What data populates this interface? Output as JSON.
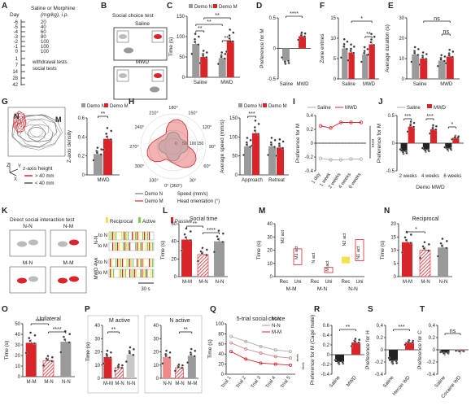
{
  "panel_letters": [
    "A",
    "B",
    "C",
    "D",
    "E",
    "F",
    "G",
    "H",
    "I",
    "J",
    "K",
    "L",
    "M",
    "N",
    "O",
    "P",
    "Q",
    "R",
    "S",
    "T"
  ],
  "colors": {
    "red": "#d9252a",
    "grey": "#9a9a9a",
    "dark": "#222222",
    "pink": "#f08a8a",
    "lightgrey": "#c8c8c8",
    "purple": "#4a3ad6",
    "yellow": "#f5e24a",
    "green": "#7ccf5a"
  },
  "panelA": {
    "col_day": "Day",
    "col_dose": "Saline or Morphine",
    "col_unit": "(mg/kg), i.p.",
    "days": [
      "-6",
      "-5",
      "-4",
      "-3",
      "-2",
      "-1",
      "0",
      "1",
      "7",
      "14",
      "28",
      "42"
    ],
    "doses": [
      "20",
      "40",
      "60",
      "80",
      "100",
      "100",
      "100"
    ],
    "note1": "withdrawal tests",
    "note2": "social tests"
  },
  "panelB": {
    "title": "Social choice test",
    "label_top": "Saline",
    "label_bottom": "MWD"
  },
  "legend_demo": {
    "n": "Demo N",
    "m": "Demo M"
  },
  "legend_treat": {
    "saline": "Saline",
    "mwd": "MWD"
  },
  "chart_data": [
    {
      "panel": "C",
      "type": "bar",
      "ylabel": "Time (s)",
      "ylim": [
        0,
        150
      ],
      "yticks": [
        "0",
        "50",
        "100",
        "150"
      ],
      "categories": [
        "Saline",
        "MWD"
      ],
      "series": [
        {
          "name": "Demo N",
          "values": [
            82,
            47
          ]
        },
        {
          "name": "Demo M",
          "values": [
            50,
            90
          ]
        }
      ],
      "sig": [
        "**",
        "**",
        "**",
        "**"
      ]
    },
    {
      "panel": "D",
      "type": "bar",
      "ylabel": "Preference for M",
      "ylim": [
        -0.5,
        0.5
      ],
      "yticks": [
        "-0.5",
        "0",
        "0.5"
      ],
      "categories": [
        "Saline",
        "MWD"
      ],
      "values": [
        -0.2,
        0.2
      ],
      "sig": [
        "****"
      ]
    },
    {
      "panel": "F",
      "type": "bar",
      "ylabel": "Zone entries",
      "ylim": [
        0,
        15
      ],
      "yticks": [
        "0",
        "5",
        "10",
        "15"
      ],
      "categories": [
        "Saline",
        "MWD"
      ],
      "series": [
        {
          "name": "Demo N",
          "values": [
            7.5,
            6
          ]
        },
        {
          "name": "Demo M",
          "values": [
            6.5,
            8.5
          ]
        }
      ],
      "sig": [
        "*",
        "**"
      ]
    },
    {
      "panel": "E",
      "type": "bar",
      "ylabel": "Average duration (s)",
      "ylim": [
        0,
        30
      ],
      "yticks": [
        "0",
        "10",
        "20",
        "30"
      ],
      "categories": [
        "Saline",
        "MWD"
      ],
      "series": [
        {
          "name": "Demo N",
          "values": [
            12,
            9
          ]
        },
        {
          "name": "Demo M",
          "values": [
            10,
            11
          ]
        }
      ],
      "sig": [
        "ns",
        "ns"
      ]
    },
    {
      "panel": "G",
      "type": "bar",
      "ylabel": "Z-axis density",
      "ylim": [
        0,
        0.6
      ],
      "yticks": [
        "0",
        "0.2",
        "0.4",
        "0.6"
      ],
      "categories": [
        "MWD"
      ],
      "series": [
        {
          "name": "Demo N",
          "values": [
            0.22
          ]
        },
        {
          "name": "Demo M",
          "values": [
            0.38
          ]
        }
      ],
      "sig": [
        "**"
      ]
    },
    {
      "panel": "H",
      "type": "bar",
      "ylabel": "Average speed (mm/s)",
      "ylim": [
        0,
        150
      ],
      "yticks": [
        "0",
        "50",
        "100",
        "150"
      ],
      "categories": [
        "Approach",
        "Retreat"
      ],
      "series": [
        {
          "name": "Demo N",
          "values": [
            75,
            75
          ]
        },
        {
          "name": "Demo M",
          "values": [
            110,
            72
          ]
        }
      ],
      "sig": [
        "***"
      ]
    },
    {
      "panel": "I",
      "type": "line",
      "ylabel": "Preference for M",
      "ylim": [
        -0.4,
        0.4
      ],
      "yticks": [
        "-0.4",
        "-0.2",
        "0",
        "0.2",
        "0.4"
      ],
      "categories": [
        "1 day",
        "1 week",
        "2 weeks",
        "4 weeks",
        "6 weeks"
      ],
      "series": [
        {
          "name": "Saline",
          "values": [
            -0.22,
            -0.24,
            -0.24,
            -0.23,
            -0.23
          ]
        },
        {
          "name": "MWD",
          "values": [
            0.25,
            0.22,
            0.3,
            0.3,
            0.3
          ]
        }
      ],
      "sig": [
        "****"
      ]
    },
    {
      "panel": "J",
      "type": "bar",
      "ylabel": "Preference for M",
      "ylim": [
        -0.5,
        0.5
      ],
      "yticks": [
        "-0.5",
        "0",
        "0.5"
      ],
      "categories": [
        "2 weeks",
        "4 weeks",
        "6 weeks"
      ],
      "xlabel": "Demo MWD",
      "series": [
        {
          "name": "Saline",
          "values": [
            -0.15,
            -0.12,
            -0.1
          ]
        },
        {
          "name": "MWD",
          "values": [
            0.3,
            0.25,
            0.1
          ]
        }
      ],
      "sig": [
        "***",
        "***",
        "*"
      ]
    },
    {
      "panel": "L",
      "type": "bar",
      "title": "Social time",
      "ylabel": "Time (s)",
      "ylim": [
        0,
        60
      ],
      "yticks": [
        "0",
        "20",
        "40",
        "60"
      ],
      "categories": [
        "M-M",
        "M-N",
        "N-N"
      ],
      "values": [
        42,
        25,
        40
      ],
      "sig": [
        "**",
        "****"
      ]
    },
    {
      "panel": "M",
      "type": "bar",
      "ylabel": "Time (s)",
      "ylim": [
        0,
        40
      ],
      "yticks": [
        "0",
        "10",
        "20",
        "30",
        "40"
      ],
      "groups": [
        "M-M",
        "M-N",
        "N-N"
      ],
      "categories": [
        "Rec",
        "Uni",
        "Rec",
        "Uni",
        "Rec",
        "Uni"
      ],
      "annotations": [
        "M2 act",
        "M1 act",
        "N act",
        "M act",
        "N2 act",
        "N1 act"
      ]
    },
    {
      "panel": "N",
      "type": "bar",
      "title": "Reciprocal",
      "ylabel": "Time (s)",
      "ylim": [
        0,
        20
      ],
      "yticks": [
        "0",
        "5",
        "10",
        "15",
        "20"
      ],
      "categories": [
        "M-M",
        "M-N",
        "N-N"
      ],
      "values": [
        13,
        10,
        11
      ],
      "sig": [
        "*"
      ]
    },
    {
      "panel": "O",
      "type": "bar",
      "title": "Unilateral",
      "ylabel": "Time (s)",
      "ylim": [
        0,
        50
      ],
      "yticks": [
        "0",
        "10",
        "20",
        "30",
        "40",
        "50"
      ],
      "categories": [
        "M-M",
        "M-N",
        "N-N"
      ],
      "values": [
        32,
        15,
        33
      ],
      "sig": [
        "****",
        "****"
      ]
    },
    {
      "panel": "P1",
      "type": "bar",
      "title": "M active",
      "ylabel": "Time (s)",
      "ylim": [
        0,
        40
      ],
      "yticks": [
        "0",
        "10",
        "20",
        "30",
        "40"
      ],
      "categories": [
        "M-M",
        "M-N",
        "N-N"
      ],
      "values": [
        16,
        8,
        18
      ],
      "sig": [
        "**"
      ]
    },
    {
      "panel": "P2",
      "type": "bar",
      "title": "N active",
      "ylim": [
        0,
        40
      ],
      "yticks": [
        "0",
        "10",
        "20",
        "30",
        "40"
      ],
      "categories": [
        "N-N",
        "M-N",
        "M-M"
      ],
      "values": [
        16,
        8,
        17
      ],
      "sig": [
        "**"
      ]
    },
    {
      "panel": "Q",
      "type": "line",
      "title": "5-trial social choice",
      "ylabel": "Time (s)",
      "ylim": [
        0,
        100
      ],
      "yticks": [
        "0",
        "20",
        "40",
        "60",
        "80",
        "100"
      ],
      "categories": [
        "Trial 1",
        "Trial 2",
        "Trial 3",
        "Trial 4",
        "Trial 5"
      ],
      "series": [
        {
          "name": "M-N",
          "values": [
            75,
            65,
            55,
            48,
            45
          ]
        },
        {
          "name": "N-N",
          "values": [
            62,
            50,
            42,
            35,
            32
          ]
        },
        {
          "name": "M-M",
          "values": [
            45,
            30,
            22,
            20,
            18
          ]
        }
      ],
      "sig": [
        "****",
        "****"
      ]
    },
    {
      "panel": "R",
      "type": "bar",
      "ylabel": "Preference for M (Cage mate)",
      "ylim": [
        -0.4,
        0.6
      ],
      "yticks": [
        "-0.4",
        "-0.2",
        "0",
        "0.2",
        "0.4",
        "0.6"
      ],
      "categories": [
        "Saline",
        "MWD"
      ],
      "values": [
        -0.15,
        0.25
      ],
      "sig": [
        "**"
      ]
    },
    {
      "panel": "S",
      "type": "bar",
      "ylabel": "Preference for H",
      "ylim": [
        -0.4,
        0.4
      ],
      "yticks": [
        "-0.4",
        "-0.2",
        "0",
        "0.2",
        "0.4"
      ],
      "categories": [
        "Saline",
        "Heroin WD"
      ],
      "values": [
        -0.18,
        0.12
      ],
      "sig": [
        "***"
      ]
    },
    {
      "panel": "T",
      "type": "bar",
      "ylabel": "Preference for C",
      "ylim": [
        -0.4,
        0.4
      ],
      "yticks": [
        "-0.4",
        "-0.2",
        "0",
        "0.2",
        "0.4"
      ],
      "categories": [
        "Saline",
        "Cocaine WD"
      ],
      "values": [
        -0.05,
        -0.02
      ],
      "sig": [
        "ns"
      ]
    }
  ],
  "panelG_left": {
    "label_n": "N",
    "label_m": "M",
    "z_title": "z-axis height",
    "z_hi": "> 40 mm",
    "z_lo": "< 40 mm",
    "ax_z": "Z",
    "ax_y": "Y",
    "ax_x": "X"
  },
  "panelH_polar": {
    "angles": [
      "0° (360°)",
      "30°",
      "60°",
      "90°",
      "120°",
      "150°",
      "180°",
      "210°",
      "240°",
      "270°",
      "300°",
      "330°"
    ],
    "rings": [
      "0",
      "50",
      "100",
      "150"
    ],
    "leg_n": "Demo N",
    "leg_m": "Demo M",
    "leg_speed": "Speed (mm/s)",
    "leg_head": "Head orientation (°)"
  },
  "panelK": {
    "title": "Direct social interaction test",
    "pairs": [
      "N-N",
      "N-M",
      "M-N",
      "M-M"
    ],
    "legend": [
      "Reciprocal",
      "Active",
      "Passive"
    ],
    "rows": [
      "to N",
      "to M",
      "to N",
      "to M"
    ],
    "group": "MWD 4wk",
    "scale": "30 s"
  }
}
